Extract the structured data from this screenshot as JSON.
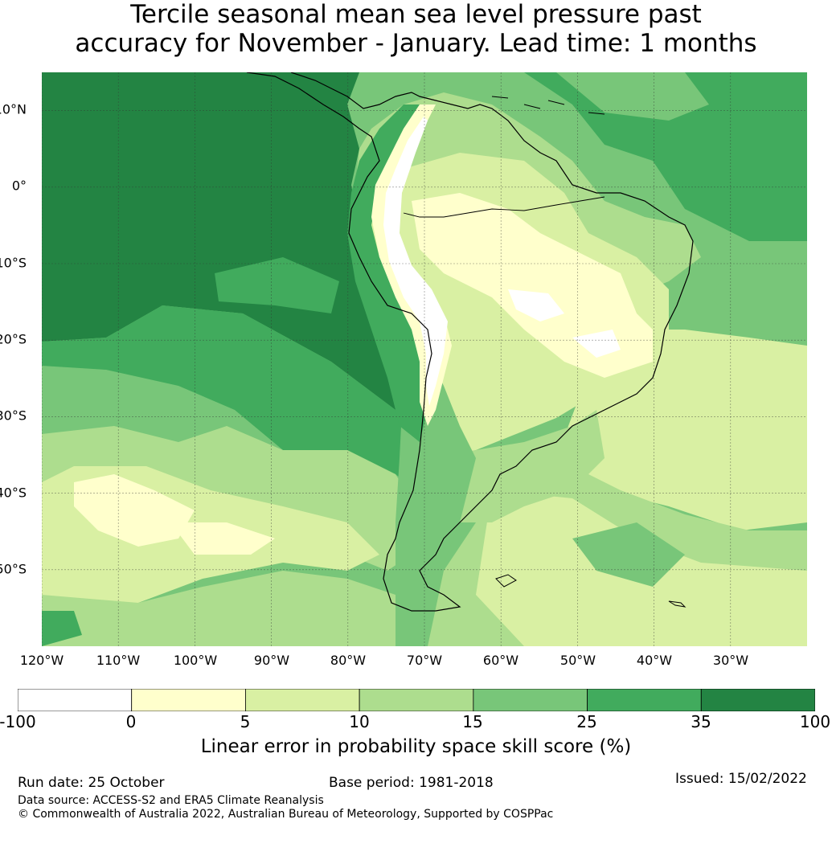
{
  "title": {
    "line1": "Tercile seasonal mean sea level pressure past",
    "line2": "accuracy for November - January. Lead time: 1 months"
  },
  "map": {
    "lat_labels": [
      "10°N",
      "0°",
      "10°S",
      "20°S",
      "30°S",
      "40°S",
      "50°S"
    ],
    "lon_labels": [
      "120°W",
      "110°W",
      "100°W",
      "90°W",
      "80°W",
      "70°W",
      "60°W",
      "50°W",
      "40°W",
      "30°W"
    ],
    "extent": {
      "lon": [
        -120,
        -20
      ],
      "lat": [
        -60,
        15
      ]
    },
    "colors": {
      "cat0": "#ffffff",
      "cat1": "#ffffcc",
      "cat2": "#d9f0a3",
      "cat3": "#addd8e",
      "cat4": "#78c679",
      "cat5": "#41ab5d",
      "cat6": "#238443",
      "coast": "#000000",
      "grid": "#333333"
    }
  },
  "colorbar": {
    "ticks": [
      "-100",
      "0",
      "5",
      "10",
      "15",
      "25",
      "35",
      "100"
    ],
    "colors": [
      "#ffffff",
      "#ffffcc",
      "#d9f0a3",
      "#addd8e",
      "#78c679",
      "#41ab5d",
      "#238443"
    ],
    "label": "Linear error in probability space skill score (%)"
  },
  "footer": {
    "run_date": "Run date: 25 October",
    "base_period": "Base period: 1981-2018",
    "issued": "Issued: 15/02/2022",
    "source": "Data source: ACCESS-S2 and ERA5 Climate Reanalysis",
    "copyright": "© Commonwealth of Australia 2022, Australian Bureau of Meteorology, Supported by COSPPac"
  }
}
